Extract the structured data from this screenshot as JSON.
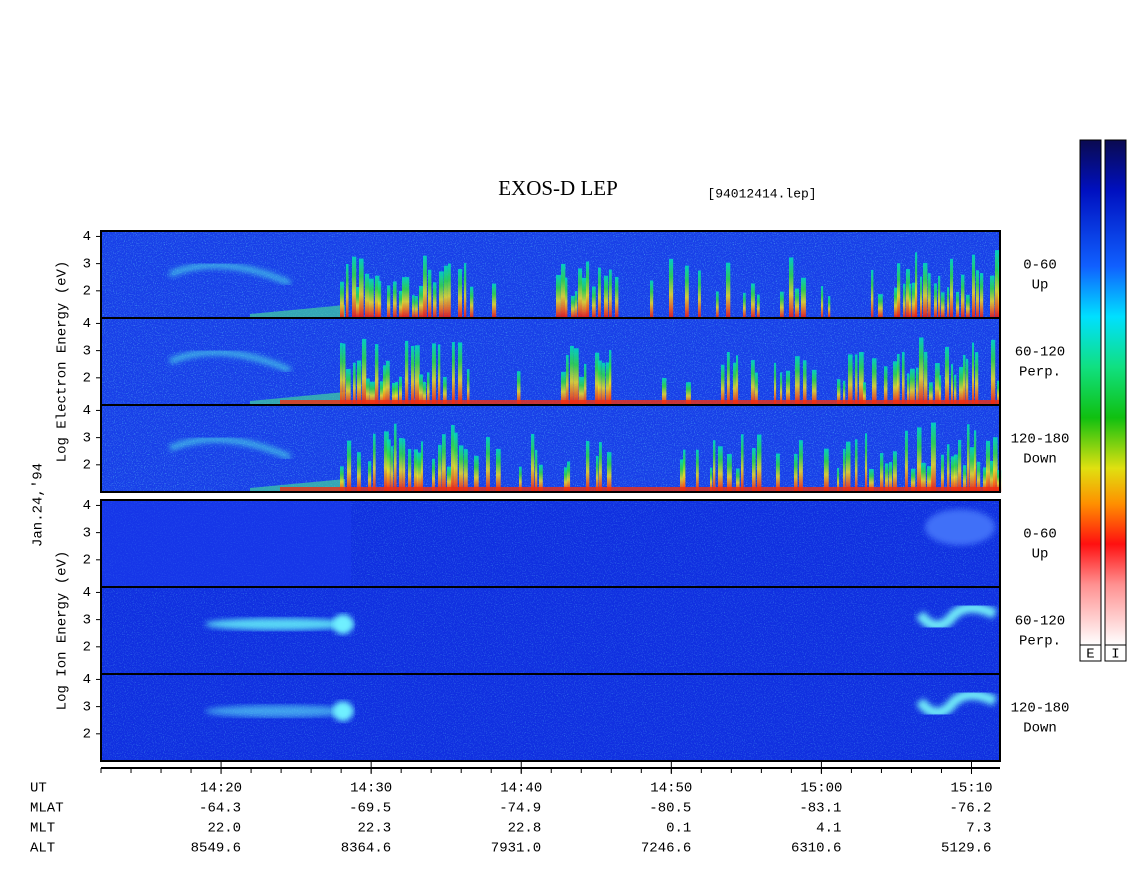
{
  "chart_data": {
    "type": "spectrogram",
    "title": "EXOS-D LEP",
    "file": "[94012414.lep]",
    "date": "Jan.24,'94",
    "xlim": [
      852,
      911.9
    ],
    "xticks": [
      {
        "value": 860,
        "label": "14:20"
      },
      {
        "value": 870,
        "label": "14:30"
      },
      {
        "value": 880,
        "label": "14:40"
      },
      {
        "value": 890,
        "label": "14:50"
      },
      {
        "value": 900,
        "label": "15:00"
      },
      {
        "value": 910,
        "label": "15:10"
      }
    ],
    "xaxis_label": "UT",
    "groups": [
      {
        "ylabel": "Log Electron Energy (eV)",
        "ylim": [
          1,
          4.2
        ],
        "yticks": [
          2,
          3,
          4
        ],
        "panels": [
          {
            "label": "0-60",
            "sublabel": "Up"
          },
          {
            "label": "60-120",
            "sublabel": "Perp."
          },
          {
            "label": "120-180",
            "sublabel": "Down"
          }
        ]
      },
      {
        "ylabel": "Log Ion Energy (eV)",
        "ylim": [
          1,
          4.2
        ],
        "yticks": [
          2,
          3,
          4
        ],
        "panels": [
          {
            "label": "0-60",
            "sublabel": "Up"
          },
          {
            "label": "60-120",
            "sublabel": "Perp."
          },
          {
            "label": "120-180",
            "sublabel": "Down"
          }
        ]
      }
    ],
    "rows": [
      {
        "name": "MLAT",
        "values": [
          "-64.3",
          "-69.5",
          "-74.9",
          "-80.5",
          "-83.1",
          "-76.2"
        ]
      },
      {
        "name": "MLT",
        "values": [
          "22.0",
          "22.3",
          "22.8",
          "0.1",
          "4.1",
          "7.3"
        ]
      },
      {
        "name": "ALT",
        "values": [
          "8549.6",
          "8364.6",
          "7931.0",
          "7246.6",
          "6310.6",
          "5129.6"
        ]
      }
    ],
    "colorbars": [
      "E",
      "I"
    ]
  }
}
